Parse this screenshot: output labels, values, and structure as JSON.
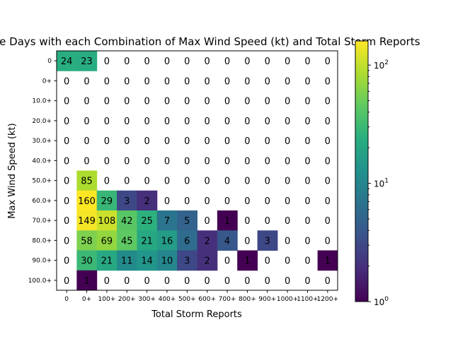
{
  "chart_data": {
    "type": "heatmap",
    "title": "Severe Days with each Combination of Max Wind Speed (kt) and Total Storm Reports",
    "xlabel": "Total Storm Reports",
    "ylabel": "Max Wind Speed (kt)",
    "x_categories": [
      "0",
      "0+",
      "100+",
      "200+",
      "300+",
      "400+",
      "500+",
      "600+",
      "700+",
      "800+",
      "900+",
      "1000+",
      "1100+",
      "1200+"
    ],
    "y_categories": [
      "0",
      "0+",
      "10.0+",
      "20.0+",
      "30.0+",
      "40.0+",
      "50.0+",
      "60.0+",
      "70.0+",
      "80.0+",
      "90.0+",
      "100.0+"
    ],
    "values": [
      [
        24,
        23,
        0,
        0,
        0,
        0,
        0,
        0,
        0,
        0,
        0,
        0,
        0,
        0
      ],
      [
        0,
        0,
        0,
        0,
        0,
        0,
        0,
        0,
        0,
        0,
        0,
        0,
        0,
        0
      ],
      [
        0,
        0,
        0,
        0,
        0,
        0,
        0,
        0,
        0,
        0,
        0,
        0,
        0,
        0
      ],
      [
        0,
        0,
        0,
        0,
        0,
        0,
        0,
        0,
        0,
        0,
        0,
        0,
        0,
        0
      ],
      [
        0,
        0,
        0,
        0,
        0,
        0,
        0,
        0,
        0,
        0,
        0,
        0,
        0,
        0
      ],
      [
        0,
        0,
        0,
        0,
        0,
        0,
        0,
        0,
        0,
        0,
        0,
        0,
        0,
        0
      ],
      [
        0,
        85,
        0,
        0,
        0,
        0,
        0,
        0,
        0,
        0,
        0,
        0,
        0,
        0
      ],
      [
        0,
        160,
        29,
        3,
        2,
        0,
        0,
        0,
        0,
        0,
        0,
        0,
        0,
        0
      ],
      [
        0,
        149,
        108,
        42,
        25,
        7,
        5,
        0,
        1,
        0,
        0,
        0,
        0,
        0
      ],
      [
        0,
        58,
        69,
        45,
        21,
        16,
        6,
        2,
        4,
        0,
        3,
        0,
        0,
        0
      ],
      [
        0,
        30,
        21,
        11,
        14,
        10,
        3,
        2,
        0,
        1,
        0,
        0,
        0,
        1
      ],
      [
        0,
        1,
        0,
        0,
        0,
        0,
        0,
        0,
        0,
        0,
        0,
        0,
        0,
        0
      ]
    ],
    "colorscale": "viridis",
    "color_scale_type": "log",
    "color_range": [
      1,
      160
    ],
    "colorbar_ticks": [
      {
        "value": 1,
        "base": "10",
        "exp": "0"
      },
      {
        "value": 10,
        "base": "10",
        "exp": "1"
      },
      {
        "value": 100,
        "base": "10",
        "exp": "2"
      }
    ],
    "zero_cells_colored": false,
    "grid": false
  }
}
